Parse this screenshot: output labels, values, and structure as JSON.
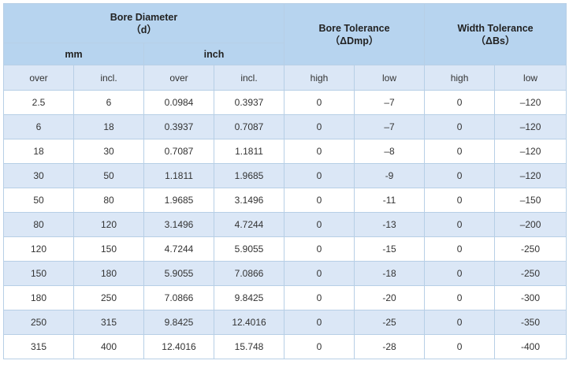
{
  "header": {
    "bore_diameter_title": "Bore Diameter",
    "bore_diameter_symbol": "（d）",
    "bore_tolerance_title": "Bore Tolerance",
    "bore_tolerance_symbol": "（ΔDmp）",
    "width_tolerance_title": "Width Tolerance",
    "width_tolerance_symbol": "（ΔBs）",
    "mm": "mm",
    "inch": "inch",
    "col_mm_over": "over",
    "col_mm_incl": "incl.",
    "col_inch_over": "over",
    "col_inch_incl": "incl.",
    "col_bore_high": "high",
    "col_bore_low": "low",
    "col_width_high": "high",
    "col_width_low": "low"
  },
  "rows": [
    [
      "2.5",
      "6",
      "0.0984",
      "0.3937",
      "0",
      "–7",
      "0",
      "–120"
    ],
    [
      "6",
      "18",
      "0.3937",
      "0.7087",
      "0",
      "–7",
      "0",
      "–120"
    ],
    [
      "18",
      "30",
      "0.7087",
      "1.1811",
      "0",
      "–8",
      "0",
      "–120"
    ],
    [
      "30",
      "50",
      "1.1811",
      "1.9685",
      "0",
      "-9",
      "0",
      "–120"
    ],
    [
      "50",
      "80",
      "1.9685",
      "3.1496",
      "0",
      "-11",
      "0",
      "–150"
    ],
    [
      "80",
      "120",
      "3.1496",
      "4.7244",
      "0",
      "-13",
      "0",
      "–200"
    ],
    [
      "120",
      "150",
      "4.7244",
      "5.9055",
      "0",
      "-15",
      "0",
      "-250"
    ],
    [
      "150",
      "180",
      "5.9055",
      "7.0866",
      "0",
      "-18",
      "0",
      "-250"
    ],
    [
      "180",
      "250",
      "7.0866",
      "9.8425",
      "0",
      "-20",
      "0",
      "-300"
    ],
    [
      "250",
      "315",
      "9.8425",
      "12.4016",
      "0",
      "-25",
      "0",
      "-350"
    ],
    [
      "315",
      "400",
      "12.4016",
      "15.748",
      "0",
      "-28",
      "0",
      "-400"
    ]
  ],
  "colors": {
    "header_bg": "#b7d4ef",
    "subheader_bg": "#dbe7f6",
    "stripe_bg": "#dbe7f6",
    "border": "#b7cfe6"
  }
}
